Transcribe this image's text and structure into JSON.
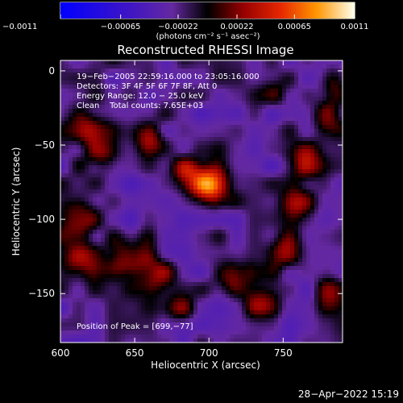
{
  "chart_data": {
    "type": "heatmap",
    "title": "Reconstructed RHESSI Image",
    "xlabel": "Heliocentric X (arcsec)",
    "ylabel": "Heliocentric Y (arcsec)",
    "xlim": [
      600,
      790
    ],
    "ylim": [
      -183,
      7
    ],
    "xticks": [
      600,
      650,
      700,
      750
    ],
    "xtick_labels": [
      "600",
      "650",
      "700",
      "750"
    ],
    "yticks": [
      0,
      -50,
      -100,
      -150
    ],
    "ytick_labels": [
      "0",
      "−50",
      "−100",
      "−150"
    ],
    "colorbar": {
      "min": -0.0011,
      "max": 0.0011,
      "ticks": [
        -0.0011,
        -0.00065,
        -0.00022,
        0.00022,
        0.00065,
        0.0011
      ],
      "tick_labels": [
        "−0.0011",
        "−0.00065",
        "−0.00022",
        "0.00022",
        "0.00065",
        "0.0011"
      ],
      "unit_label": "(photons cm⁻² s⁻¹ asec⁻²)"
    },
    "annotations": {
      "time": "19−Feb−2005 22:59:16.000 to 23:05:16.000",
      "detectors": "Detectors: 3F 4F 5F 6F 7F 8F, Att 0",
      "energy": "Energy Range: 12.0 − 25.0 keV",
      "clean": "Clean    Total counts: 7.65E+03",
      "peak": "Position of Peak = [699,−77]"
    },
    "sources": [
      {
        "x": 699,
        "y": -77,
        "amp": 0.00105,
        "sx": 9,
        "sy": 9
      },
      {
        "x": 684,
        "y": -66,
        "amp": 0.00045,
        "sx": 8,
        "sy": 6
      },
      {
        "x": 618,
        "y": -40,
        "amp": 0.00055,
        "sx": 10,
        "sy": 9
      },
      {
        "x": 627,
        "y": -58,
        "amp": 0.0004,
        "sx": 8,
        "sy": 8
      },
      {
        "x": 660,
        "y": -46,
        "amp": 0.00045,
        "sx": 8,
        "sy": 8
      },
      {
        "x": 612,
        "y": -101,
        "amp": 0.0006,
        "sx": 8,
        "sy": 10
      },
      {
        "x": 613,
        "y": -128,
        "amp": 0.0005,
        "sx": 9,
        "sy": 9
      },
      {
        "x": 645,
        "y": -125,
        "amp": 0.00055,
        "sx": 10,
        "sy": 8
      },
      {
        "x": 665,
        "y": -137,
        "amp": 0.00045,
        "sx": 9,
        "sy": 9
      },
      {
        "x": 715,
        "y": -138,
        "amp": 0.00045,
        "sx": 9,
        "sy": 8
      },
      {
        "x": 735,
        "y": -157,
        "amp": 0.0004,
        "sx": 9,
        "sy": 8
      },
      {
        "x": 752,
        "y": -122,
        "amp": 0.0005,
        "sx": 8,
        "sy": 9
      },
      {
        "x": 765,
        "y": -62,
        "amp": 0.00055,
        "sx": 8,
        "sy": 9
      },
      {
        "x": 760,
        "y": -90,
        "amp": 0.00045,
        "sx": 8,
        "sy": 9
      },
      {
        "x": 780,
        "y": -30,
        "amp": 0.0005,
        "sx": 7,
        "sy": 9
      },
      {
        "x": 783,
        "y": -8,
        "amp": 0.0004,
        "sx": 6,
        "sy": 8
      },
      {
        "x": 782,
        "y": -150,
        "amp": 0.00035,
        "sx": 7,
        "sy": 9
      },
      {
        "x": 680,
        "y": -160,
        "amp": 0.00035,
        "sx": 8,
        "sy": 7
      },
      {
        "x": 745,
        "y": -15,
        "amp": 0.0003,
        "sx": 8,
        "sy": 7
      }
    ],
    "grid": false
  },
  "footer": {
    "timestamp": "28−Apr−2022 15:19"
  }
}
